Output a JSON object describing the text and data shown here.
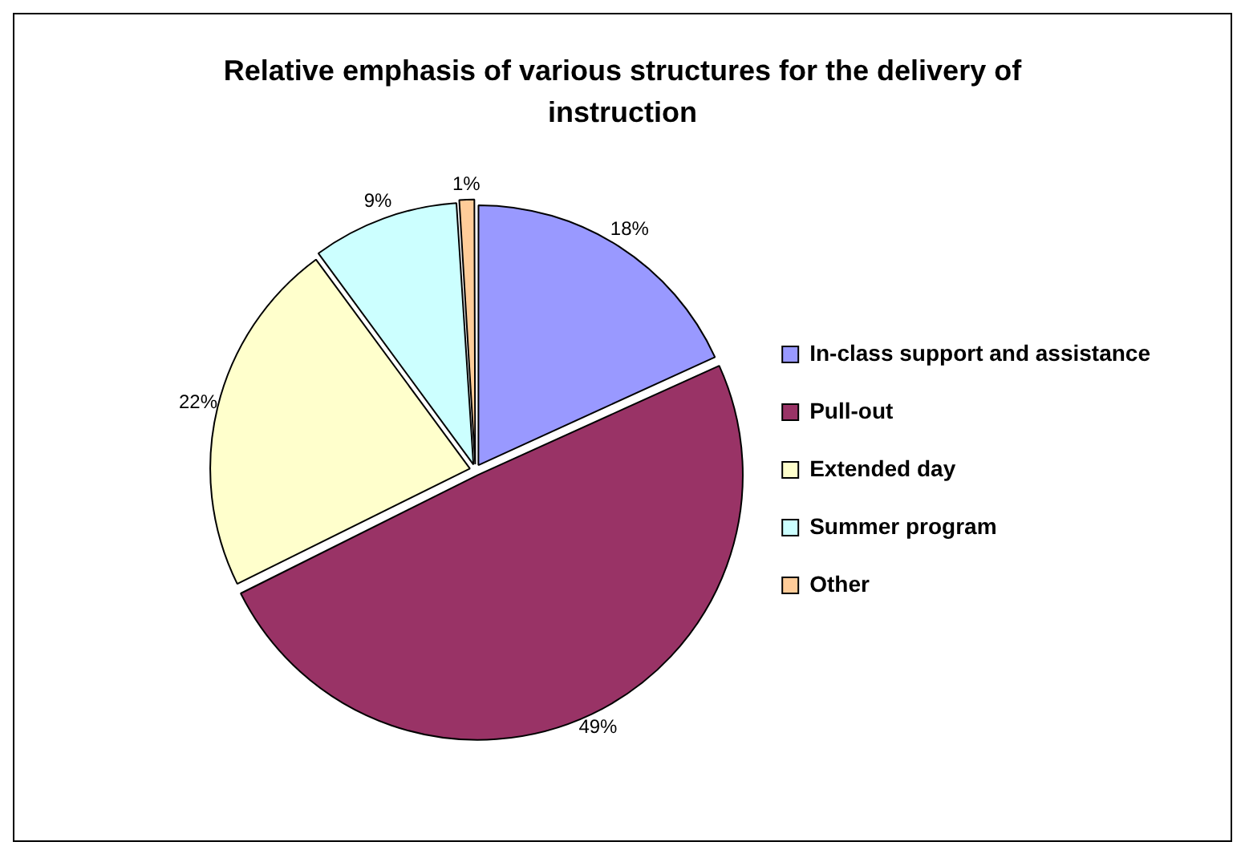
{
  "chart_data": {
    "type": "pie",
    "title": "Relative emphasis of various structures for the delivery of instruction",
    "categories": [
      "In-class support and assistance",
      "Pull-out",
      "Extended day",
      "Summer program",
      "Other"
    ],
    "values": [
      18,
      49,
      22,
      9,
      1
    ],
    "colors": [
      "#9999ff",
      "#993366",
      "#ffffcc",
      "#ccffff",
      "#ffcc99"
    ],
    "value_labels": [
      "18%",
      "49%",
      "22%",
      "9%",
      "1%"
    ],
    "legend": "right"
  }
}
